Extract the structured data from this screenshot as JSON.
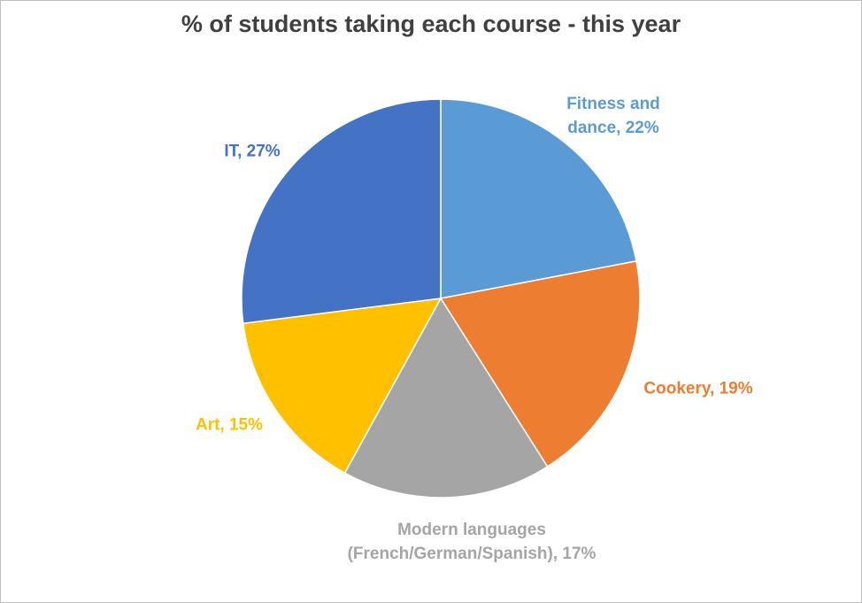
{
  "chart_data": {
    "type": "pie",
    "title": "% of students taking each course - this year",
    "categories": [
      "Fitness and dance",
      "Cookery",
      "Modern languages (French/German/Spanish)",
      "Art",
      "IT"
    ],
    "values": [
      22,
      19,
      17,
      15,
      27
    ],
    "value_labels": [
      ", 22%",
      ", 19%",
      ", 17%",
      ", 15%",
      ", 27%"
    ],
    "colors": [
      "#5b9bd5",
      "#ed7d31",
      "#a5a5a5",
      "#ffc000",
      "#4472c4"
    ]
  }
}
